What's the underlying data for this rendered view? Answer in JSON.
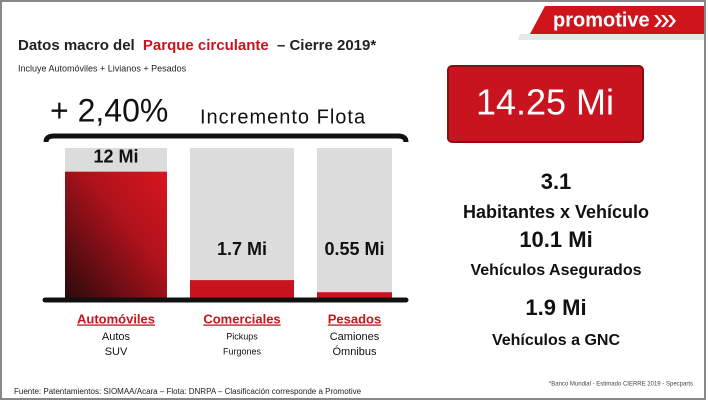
{
  "header": {
    "title_before": "Datos macro del",
    "title_highlight": "Parque circulante",
    "title_after": "– Cierre 2019*",
    "subtitle": "Incluye Automóviles + Livianos + Pesados",
    "logo": "promotive"
  },
  "headline": {
    "value": "+ 2,40%",
    "label": "Incremento Flota"
  },
  "total": "14.25 Mi",
  "stats": [
    {
      "value": "3.1",
      "label": "Habitantes x Vehículo"
    },
    {
      "value": "10.1 Mi",
      "label": "Vehículos Asegurados"
    },
    {
      "value": "1.9 Mi",
      "label": "Vehículos a GNC"
    }
  ],
  "chart_data": {
    "type": "bar",
    "categories": [
      "Automóviles",
      "Comerciales",
      "Pesados"
    ],
    "subcategories": [
      [
        "Autos",
        "SUV"
      ],
      [
        "Pickups",
        "Furgones"
      ],
      [
        "Camiones",
        "Ómnibus"
      ]
    ],
    "values": [
      12,
      1.7,
      0.55
    ],
    "value_labels": [
      "12 Mi",
      "1.7 Mi",
      "0.55 Mi"
    ],
    "color": "#c8141e",
    "ylim": [
      0,
      14.25
    ]
  },
  "footer": {
    "source": "Fuente: Patentamientos: SIOMAA/Acara – Flota: DNRPA – Clasificación corresponde a Promotive",
    "note": "*Banco Mundial - Estimado CIERRE 2019 - Specparts"
  }
}
